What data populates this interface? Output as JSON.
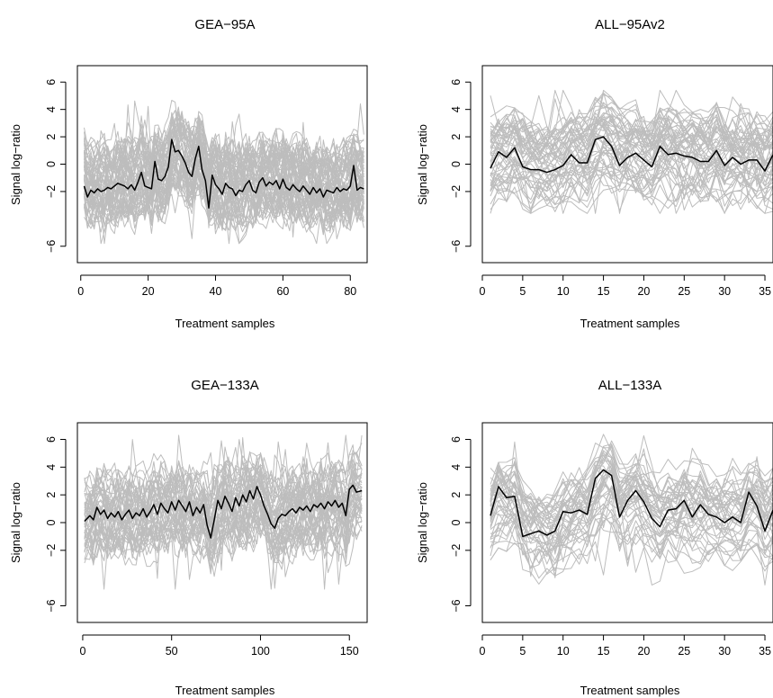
{
  "chart_data": [
    {
      "type": "line",
      "title": "GEA−95A",
      "xlabel": "Treatment samples",
      "ylabel": "Signal log−ratio",
      "xlim": [
        -1,
        85
      ],
      "ylim": [
        -7.2,
        7.2
      ],
      "xticks": [
        {
          "value": 0,
          "label": "0"
        },
        {
          "value": 20,
          "label": "20"
        },
        {
          "value": 40,
          "label": "40"
        },
        {
          "value": 60,
          "label": "60"
        },
        {
          "value": 80,
          "label": "80"
        }
      ],
      "yticks": [
        {
          "value": -6,
          "label": "−6"
        },
        {
          "value": -2,
          "label": "−2"
        },
        {
          "value": 0,
          "label": "0"
        },
        {
          "value": 2,
          "label": "2"
        },
        {
          "value": 4,
          "label": "4"
        },
        {
          "value": 6,
          "label": "6"
        }
      ],
      "grid": false,
      "background": {
        "color": "#bdbdbd",
        "count": 60,
        "min": -5.8,
        "max": 6.9,
        "seed": 11
      },
      "highlight": {
        "color": "#000000",
        "x": [
          1,
          2,
          3,
          4,
          5,
          6,
          7,
          8,
          9,
          10,
          11,
          12,
          13,
          14,
          15,
          16,
          17,
          18,
          19,
          20,
          21,
          22,
          23,
          24,
          25,
          26,
          27,
          28,
          29,
          30,
          31,
          32,
          33,
          34,
          35,
          36,
          37,
          38,
          39,
          40,
          41,
          42,
          43,
          44,
          45,
          46,
          47,
          48,
          49,
          50,
          51,
          52,
          53,
          54,
          55,
          56,
          57,
          58,
          59,
          60,
          61,
          62,
          63,
          64,
          65,
          66,
          67,
          68,
          69,
          70,
          71,
          72,
          73,
          74,
          75,
          76,
          77,
          78,
          79,
          80,
          81,
          82,
          83,
          84
        ],
        "y": [
          -1.6,
          -2.4,
          -1.9,
          -2.1,
          -1.8,
          -2.0,
          -1.9,
          -1.7,
          -1.8,
          -1.6,
          -1.4,
          -1.5,
          -1.6,
          -1.8,
          -1.5,
          -1.9,
          -1.3,
          -0.6,
          -1.6,
          -1.7,
          -1.8,
          0.2,
          -1.1,
          -1.2,
          -0.9,
          -0.2,
          1.8,
          0.9,
          1.0,
          0.6,
          0.1,
          -0.6,
          -0.9,
          0.4,
          1.3,
          -0.4,
          -1.2,
          -3.2,
          -0.8,
          -1.5,
          -1.8,
          -2.2,
          -1.4,
          -1.7,
          -1.8,
          -2.3,
          -1.9,
          -2.0,
          -1.5,
          -1.2,
          -1.9,
          -2.1,
          -1.3,
          -1.0,
          -1.6,
          -1.3,
          -1.5,
          -1.2,
          -1.8,
          -1.1,
          -1.7,
          -1.9,
          -1.5,
          -1.8,
          -2.0,
          -1.6,
          -1.9,
          -2.2,
          -1.7,
          -2.1,
          -1.8,
          -2.4,
          -1.9,
          -2.0,
          -2.1,
          -1.7,
          -2.0,
          -1.8,
          -1.9,
          -1.6,
          -0.1,
          -1.9,
          -1.7,
          -1.8
        ]
      }
    },
    {
      "type": "line",
      "title": "ALL−95Av2",
      "xlabel": "Treatment samples",
      "ylabel": "Signal log−ratio",
      "xlim": [
        0,
        36
      ],
      "ylim": [
        -7.2,
        7.2
      ],
      "xticks": [
        {
          "value": 0,
          "label": "0"
        },
        {
          "value": 5,
          "label": "5"
        },
        {
          "value": 10,
          "label": "10"
        },
        {
          "value": 15,
          "label": "15"
        },
        {
          "value": 20,
          "label": "20"
        },
        {
          "value": 25,
          "label": "25"
        },
        {
          "value": 30,
          "label": "30"
        },
        {
          "value": 35,
          "label": "35"
        }
      ],
      "yticks": [
        {
          "value": -6,
          "label": "−6"
        },
        {
          "value": -2,
          "label": "−2"
        },
        {
          "value": 0,
          "label": "0"
        },
        {
          "value": 2,
          "label": "2"
        },
        {
          "value": 4,
          "label": "4"
        },
        {
          "value": 6,
          "label": "6"
        }
      ],
      "grid": false,
      "background": {
        "color": "#bdbdbd",
        "count": 55,
        "min": -3.6,
        "max": 5.4,
        "seed": 23
      },
      "highlight": {
        "color": "#000000",
        "x": [
          1,
          2,
          3,
          4,
          5,
          6,
          7,
          8,
          9,
          10,
          11,
          12,
          13,
          14,
          15,
          16,
          17,
          18,
          19,
          20,
          21,
          22,
          23,
          24,
          25,
          26,
          27,
          28,
          29,
          30,
          31,
          32,
          33,
          34,
          35,
          36
        ],
        "y": [
          -0.3,
          0.9,
          0.5,
          1.2,
          -0.2,
          -0.4,
          -0.4,
          -0.6,
          -0.4,
          -0.1,
          0.7,
          0.1,
          0.1,
          1.8,
          2.0,
          1.3,
          -0.1,
          0.5,
          0.8,
          0.3,
          -0.2,
          1.3,
          0.7,
          0.8,
          0.6,
          0.5,
          0.2,
          0.2,
          1.0,
          -0.1,
          0.5,
          0.0,
          0.3,
          0.3,
          -0.5,
          0.7
        ]
      }
    },
    {
      "type": "line",
      "title": "GEA−133A",
      "xlabel": "Treatment samples",
      "ylabel": "Signal log−ratio",
      "xlim": [
        -3,
        160
      ],
      "ylim": [
        -7.2,
        7.2
      ],
      "xticks": [
        {
          "value": 0,
          "label": "0"
        },
        {
          "value": 50,
          "label": "50"
        },
        {
          "value": 100,
          "label": "100"
        },
        {
          "value": 150,
          "label": "150"
        }
      ],
      "yticks": [
        {
          "value": -6,
          "label": "−6"
        },
        {
          "value": -2,
          "label": "−2"
        },
        {
          "value": 0,
          "label": "0"
        },
        {
          "value": 2,
          "label": "2"
        },
        {
          "value": 4,
          "label": "4"
        },
        {
          "value": 6,
          "label": "6"
        }
      ],
      "grid": false,
      "background": {
        "color": "#bdbdbd",
        "count": 50,
        "min": -4.8,
        "max": 6.3,
        "seed": 37
      },
      "highlight": {
        "color": "#000000",
        "x": [
          1,
          4,
          6,
          8,
          10,
          12,
          14,
          16,
          18,
          20,
          22,
          24,
          26,
          28,
          30,
          32,
          34,
          36,
          38,
          40,
          42,
          44,
          46,
          48,
          50,
          52,
          54,
          56,
          58,
          60,
          62,
          64,
          66,
          68,
          70,
          72,
          74,
          76,
          78,
          80,
          82,
          84,
          86,
          88,
          90,
          92,
          94,
          96,
          98,
          100,
          102,
          104,
          106,
          108,
          110,
          112,
          114,
          116,
          118,
          120,
          122,
          124,
          126,
          128,
          130,
          132,
          134,
          136,
          138,
          140,
          142,
          144,
          146,
          148,
          150,
          152,
          154,
          157
        ],
        "y": [
          0.1,
          0.5,
          0.2,
          1.1,
          0.6,
          0.9,
          0.3,
          0.7,
          0.4,
          0.8,
          0.2,
          0.6,
          0.9,
          0.3,
          0.7,
          0.5,
          1.0,
          0.4,
          0.8,
          1.3,
          0.6,
          1.4,
          1.0,
          0.7,
          1.5,
          0.9,
          1.6,
          1.2,
          0.8,
          1.5,
          0.5,
          1.1,
          0.7,
          1.3,
          -0.2,
          -1.1,
          0.2,
          1.6,
          1.0,
          1.9,
          1.4,
          0.8,
          1.8,
          1.2,
          2.0,
          1.5,
          2.3,
          1.7,
          2.6,
          2.0,
          1.2,
          0.6,
          -0.1,
          -0.4,
          0.3,
          0.6,
          0.5,
          0.8,
          1.0,
          0.7,
          1.1,
          0.9,
          1.2,
          0.8,
          1.3,
          1.1,
          1.4,
          1.0,
          1.5,
          1.2,
          1.6,
          1.1,
          1.4,
          0.5,
          2.4,
          2.7,
          2.2,
          2.3
        ]
      }
    },
    {
      "type": "line",
      "title": "ALL−133A",
      "xlabel": "Treatment samples",
      "ylabel": "Signal log−ratio",
      "xlim": [
        0,
        36
      ],
      "ylim": [
        -7.2,
        7.2
      ],
      "xticks": [
        {
          "value": 0,
          "label": "0"
        },
        {
          "value": 5,
          "label": "5"
        },
        {
          "value": 10,
          "label": "10"
        },
        {
          "value": 15,
          "label": "15"
        },
        {
          "value": 20,
          "label": "20"
        },
        {
          "value": 25,
          "label": "25"
        },
        {
          "value": 30,
          "label": "30"
        },
        {
          "value": 35,
          "label": "35"
        }
      ],
      "yticks": [
        {
          "value": -6,
          "label": "−6"
        },
        {
          "value": -2,
          "label": "−2"
        },
        {
          "value": 0,
          "label": "0"
        },
        {
          "value": 2,
          "label": "2"
        },
        {
          "value": 4,
          "label": "4"
        },
        {
          "value": 6,
          "label": "6"
        }
      ],
      "grid": false,
      "background": {
        "color": "#bdbdbd",
        "count": 45,
        "min": -4.5,
        "max": 7.2,
        "seed": 53
      },
      "highlight": {
        "color": "#000000",
        "x": [
          1,
          2,
          3,
          4,
          5,
          6,
          7,
          8,
          9,
          10,
          11,
          12,
          13,
          14,
          15,
          16,
          17,
          18,
          19,
          20,
          21,
          22,
          23,
          24,
          25,
          26,
          27,
          28,
          29,
          30,
          31,
          32,
          33,
          34,
          35,
          36
        ],
        "y": [
          0.5,
          2.6,
          1.8,
          1.9,
          -1.0,
          -0.8,
          -0.6,
          -0.9,
          -0.6,
          0.8,
          0.7,
          0.9,
          0.6,
          3.2,
          3.8,
          3.4,
          0.4,
          1.6,
          2.3,
          1.5,
          0.3,
          -0.3,
          0.9,
          1.0,
          1.6,
          0.4,
          1.3,
          0.6,
          0.4,
          0.0,
          0.4,
          0.0,
          2.2,
          1.2,
          -0.6,
          0.9
        ]
      }
    }
  ]
}
